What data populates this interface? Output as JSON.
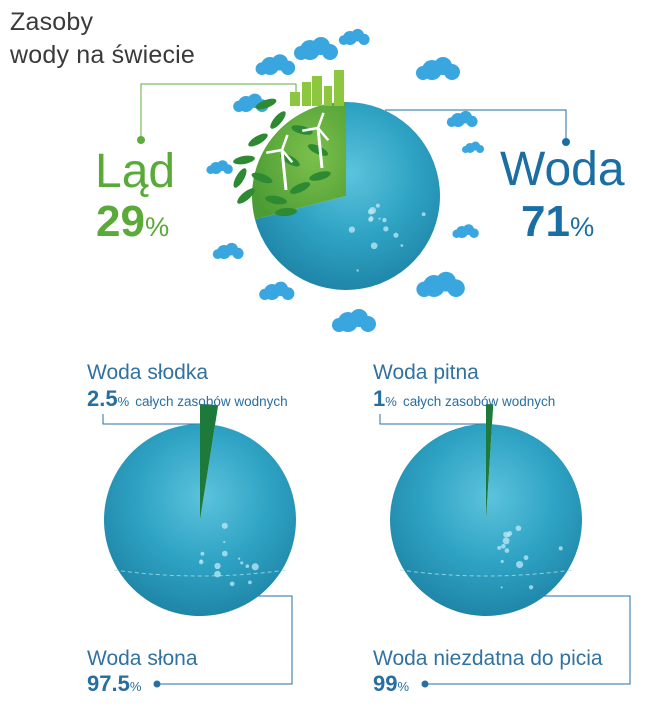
{
  "title": {
    "line1": "Zasoby",
    "line2": "wody na świecie"
  },
  "colors": {
    "water": "#2fa3c4",
    "water_light": "#5cc3dc",
    "land": "#5cad3b",
    "freshwater_wedge": "#1d7a3a",
    "blue_text": "#1b6ea3",
    "green_text": "#5aaa3a",
    "cloud": "#3aa6df",
    "leaf": "#2d8a33"
  },
  "icons": [
    "cloud-icon",
    "leaf-icon",
    "wind-turbine-icon",
    "city-building-icon"
  ],
  "chart_data": [
    {
      "type": "pie",
      "title": "Zasoby wody na świecie",
      "slices": [
        {
          "label": "Ląd",
          "value": 29,
          "display": "29",
          "unit": "%"
        },
        {
          "label": "Woda",
          "value": 71,
          "display": "71",
          "unit": "%"
        }
      ]
    },
    {
      "type": "pie",
      "slices": [
        {
          "label": "Woda słodka",
          "value": 2.5,
          "display": "2.5",
          "unit": "%",
          "note": "całych zasobów wodnych"
        },
        {
          "label": "Woda słona",
          "value": 97.5,
          "display": "97.5",
          "unit": "%"
        }
      ]
    },
    {
      "type": "pie",
      "slices": [
        {
          "label": "Woda pitna",
          "value": 1,
          "display": "1",
          "unit": "%",
          "note": "całych zasobów wodnych"
        },
        {
          "label": "Woda niezdatna do picia",
          "value": 99,
          "display": "99",
          "unit": "%"
        }
      ]
    }
  ]
}
